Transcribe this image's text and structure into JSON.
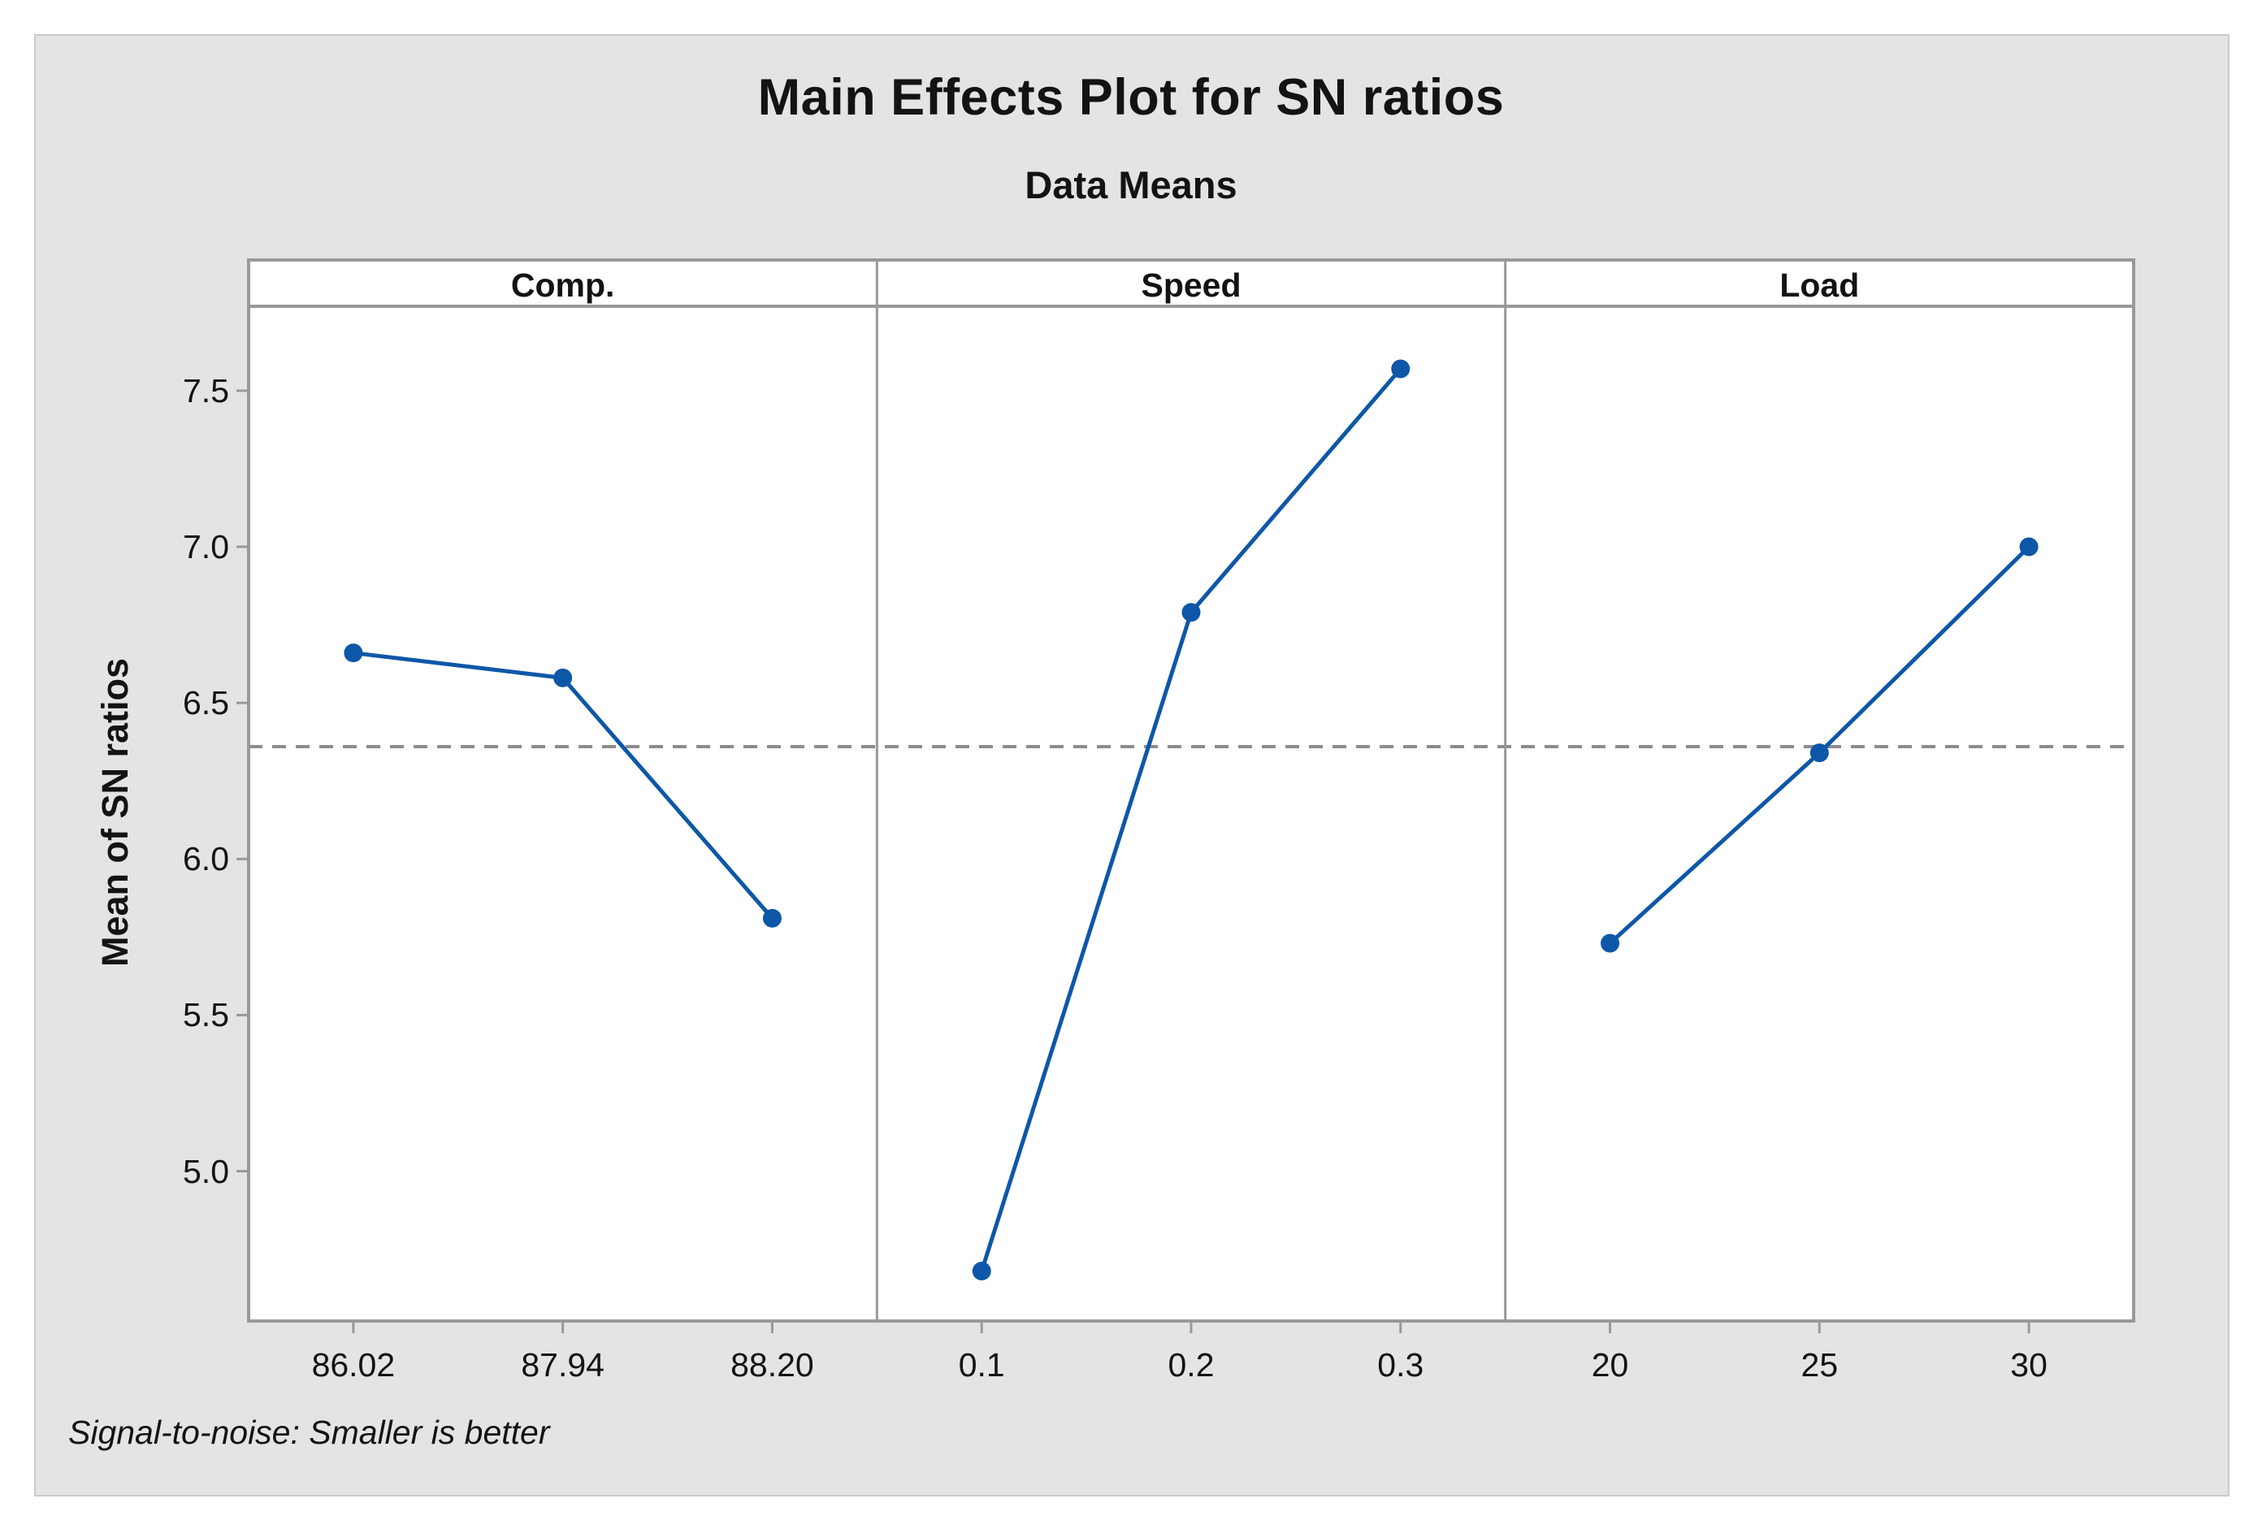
{
  "title": "Main Effects Plot for SN ratios",
  "subtitle": "Data Means",
  "ylabel": "Mean of SN ratios",
  "footnote": "Signal-to-noise: Smaller is better",
  "colors": {
    "series": "#0E57A8",
    "reference_line": "#8C8C8C",
    "frame": "#999999",
    "figure_bg": "#E4E4E4",
    "figure_border": "#CBCBCB",
    "plot_bg": "#FFFFFF",
    "text": "#131313"
  },
  "chart_data": {
    "type": "line",
    "title": "Main Effects Plot for SN ratios",
    "subtitle": "Data Means",
    "ylabel": "Mean of SN ratios",
    "note": "Signal-to-noise: Smaller is better",
    "panels": [
      {
        "label": "Comp.",
        "categories": [
          "86.02",
          "87.94",
          "88.20"
        ],
        "values": [
          6.66,
          6.58,
          5.81
        ]
      },
      {
        "label": "Speed",
        "categories": [
          "0.1",
          "0.2",
          "0.3"
        ],
        "values": [
          4.68,
          6.79,
          7.57
        ]
      },
      {
        "label": "Load",
        "categories": [
          "20",
          "25",
          "30"
        ],
        "values": [
          5.73,
          6.34,
          7.0
        ]
      }
    ],
    "ytick_labels": [
      "7.5",
      "7.0",
      "6.5",
      "6.0",
      "5.5",
      "5.0"
    ],
    "yticks": [
      7.5,
      7.0,
      6.5,
      6.0,
      5.5,
      5.0
    ],
    "ylim": [
      4.52,
      7.76
    ],
    "reference_mean": 6.36,
    "grid": false,
    "legend": false,
    "marker": "circle"
  }
}
